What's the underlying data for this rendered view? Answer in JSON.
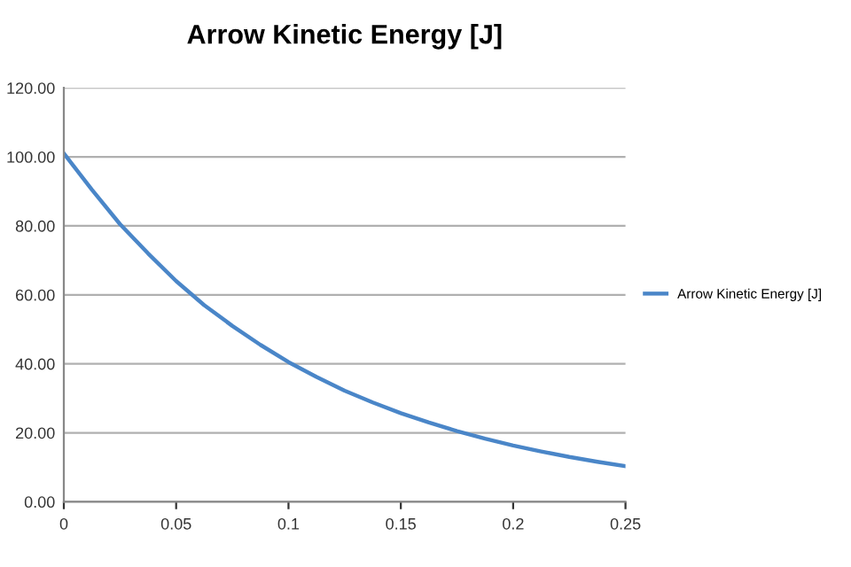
{
  "chart_data": {
    "type": "line",
    "title": "Arrow Kinetic Energy [J]",
    "x": [
      0,
      0.0125,
      0.025,
      0.0375,
      0.05,
      0.0625,
      0.075,
      0.0875,
      0.1,
      0.1125,
      0.125,
      0.1375,
      0.15,
      0.1625,
      0.175,
      0.1875,
      0.2,
      0.2125,
      0.225,
      0.2375,
      0.25
    ],
    "series": [
      {
        "name": "Arrow Kinetic Energy [J]",
        "color": "#4a86c8",
        "values": [
          101,
          90.5,
          80.5,
          72,
          64,
          57,
          51,
          45.5,
          40.5,
          36.2,
          32.2,
          28.8,
          25.7,
          23,
          20.5,
          18.3,
          16.3,
          14.6,
          13,
          11.6,
          10.3
        ]
      }
    ],
    "xlim": [
      0,
      0.25
    ],
    "xticks": [
      {
        "value": 0,
        "label": "0"
      },
      0.05,
      0.1,
      0.15,
      0.2,
      0.25
    ],
    "ylim": [
      0,
      120
    ],
    "yticks": [
      {
        "value": 0,
        "label": "0.00"
      },
      {
        "value": 20,
        "label": "20.00"
      },
      {
        "value": 40,
        "label": "40.00"
      },
      {
        "value": 60,
        "label": "60.00"
      },
      {
        "value": 80,
        "label": "80.00"
      },
      {
        "value": 100,
        "label": "100.00"
      },
      {
        "value": 120,
        "label": "120.00"
      }
    ],
    "grid": "y",
    "legend": "right",
    "marker": "none",
    "line_style": "solid"
  }
}
